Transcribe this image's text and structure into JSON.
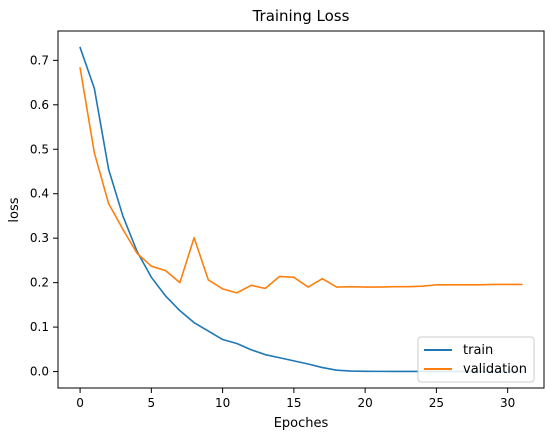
{
  "chart_data": {
    "type": "line",
    "title": "Training Loss",
    "xlabel": "Epoches",
    "ylabel": "loss",
    "xlim": [
      -1.55,
      32.55
    ],
    "ylim": [
      -0.037,
      0.766
    ],
    "xticks": [
      0,
      5,
      10,
      15,
      20,
      25,
      30
    ],
    "yticks": [
      0.0,
      0.1,
      0.2,
      0.3,
      0.4,
      0.5,
      0.6,
      0.7
    ],
    "xtick_labels": [
      "0",
      "5",
      "10",
      "15",
      "20",
      "25",
      "30"
    ],
    "ytick_labels": [
      "0.0",
      "0.1",
      "0.2",
      "0.3",
      "0.4",
      "0.5",
      "0.6",
      "0.7"
    ],
    "grid": false,
    "legend_position": "lower-right",
    "x": [
      0,
      1,
      2,
      3,
      4,
      5,
      6,
      7,
      8,
      9,
      10,
      11,
      12,
      13,
      14,
      15,
      16,
      17,
      18,
      19,
      20,
      21,
      22,
      23,
      24,
      25,
      26,
      27,
      28,
      29,
      30,
      31
    ],
    "series": [
      {
        "name": "train",
        "color": "#1f77b4",
        "values": [
          0.729,
          0.637,
          0.455,
          0.35,
          0.27,
          0.212,
          0.17,
          0.137,
          0.11,
          0.091,
          0.072,
          0.063,
          0.049,
          0.038,
          0.031,
          0.024,
          0.017,
          0.009,
          0.003,
          0.001,
          0.0005,
          0.0004,
          0.0003,
          0.0003,
          0.0002,
          0.0002,
          0.0002,
          0.0002,
          0.0002,
          0.0002,
          0.0002,
          0.0002
        ]
      },
      {
        "name": "validation",
        "color": "#ff7f0e",
        "values": [
          0.683,
          0.492,
          0.378,
          0.32,
          0.266,
          0.237,
          0.227,
          0.2,
          0.301,
          0.206,
          0.186,
          0.177,
          0.194,
          0.187,
          0.214,
          0.212,
          0.19,
          0.209,
          0.19,
          0.191,
          0.19,
          0.19,
          0.191,
          0.191,
          0.192,
          0.195,
          0.195,
          0.195,
          0.195,
          0.196,
          0.196,
          0.196
        ]
      }
    ]
  }
}
